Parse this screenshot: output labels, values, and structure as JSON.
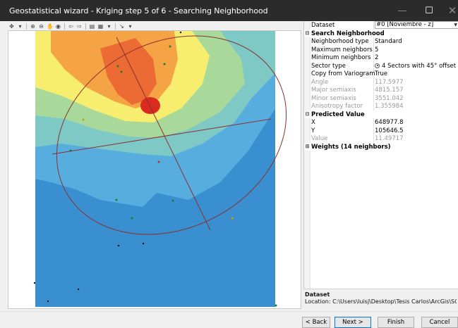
{
  "window": {
    "title": "Geostatistical wizard - Kriging step 5 of 6 - Searching Neighborhood",
    "minimize_glyph": "—",
    "maximize_glyph": "☐",
    "close_glyph": "✕"
  },
  "toolbar": {
    "items": [
      {
        "icon": "select-icon",
        "glyph": "✥"
      },
      {
        "icon": "dropdown-arrow-icon",
        "glyph": "▾"
      },
      {
        "icon": "zoom-in-icon",
        "glyph": "⊕"
      },
      {
        "icon": "zoom-out-icon",
        "glyph": "⊖"
      },
      {
        "icon": "pan-icon",
        "glyph": "✋"
      },
      {
        "icon": "full-extent-icon",
        "glyph": "◉"
      },
      {
        "icon": "back-icon",
        "glyph": "⇦"
      },
      {
        "icon": "forward-icon",
        "glyph": "⇨"
      },
      {
        "icon": "export-icon",
        "glyph": "▤"
      },
      {
        "icon": "legend-icon",
        "glyph": "▦"
      },
      {
        "icon": "dropdown-arrow-icon",
        "glyph": "▾"
      },
      {
        "icon": "identify-icon",
        "glyph": "↘"
      },
      {
        "icon": "dropdown-arrow-icon",
        "glyph": "▾"
      }
    ]
  },
  "properties": {
    "dataset": {
      "label": "Dataset",
      "value": "#0 [Noviembre - z]"
    },
    "search_neighborhood": {
      "header": "Search Neighborhood",
      "toggle": "⊟",
      "rows": [
        {
          "label": "Neighborhood type",
          "value": "Standard",
          "disabled": false
        },
        {
          "label": "Maximum neighbors",
          "value": "5",
          "disabled": false
        },
        {
          "label": "Minimum neighbors",
          "value": "2",
          "disabled": false
        },
        {
          "label": "Sector type",
          "value": "4 Sectors with 45° offset",
          "disabled": false,
          "radio": true
        },
        {
          "label": "Copy from Variogram",
          "value": "True",
          "disabled": false
        },
        {
          "label": "Angle",
          "value": "117.5977",
          "disabled": true
        },
        {
          "label": "Major semiaxis",
          "value": "4815.157",
          "disabled": true
        },
        {
          "label": "Minor semiaxis",
          "value": "3551.042",
          "disabled": true
        },
        {
          "label": "Anisotropy factor",
          "value": "1.355984",
          "disabled": true
        }
      ]
    },
    "predicted_value": {
      "header": "Predicted Value",
      "toggle": "⊟",
      "rows": [
        {
          "label": "X",
          "value": "648977.8",
          "disabled": false
        },
        {
          "label": "Y",
          "value": "105646.5",
          "disabled": false
        },
        {
          "label": "Value",
          "value": "11.49717",
          "disabled": true
        }
      ]
    },
    "weights": {
      "header": "Weights (14 neighbors)",
      "toggle": "⊞"
    }
  },
  "description": {
    "title": "Dataset",
    "text": "Location: C:\\Users\\luisj\\Desktop\\Tesis Carlos\\ArcGis\\SO2\\N..."
  },
  "footer": {
    "back": "< Back",
    "next": "Next >",
    "finish": "Finish",
    "cancel": "Cancel"
  },
  "map": {
    "colors": {
      "low": "#3a8fd0",
      "low_mid": "#57aede",
      "mid": "#7ec9c6",
      "mid2": "#a8d99a",
      "yellow": "#f7ee6f",
      "orange": "#f5a445",
      "red_orange": "#ec6b35",
      "red": "#d92b1f",
      "ellipse": "#8b2f2f"
    }
  }
}
